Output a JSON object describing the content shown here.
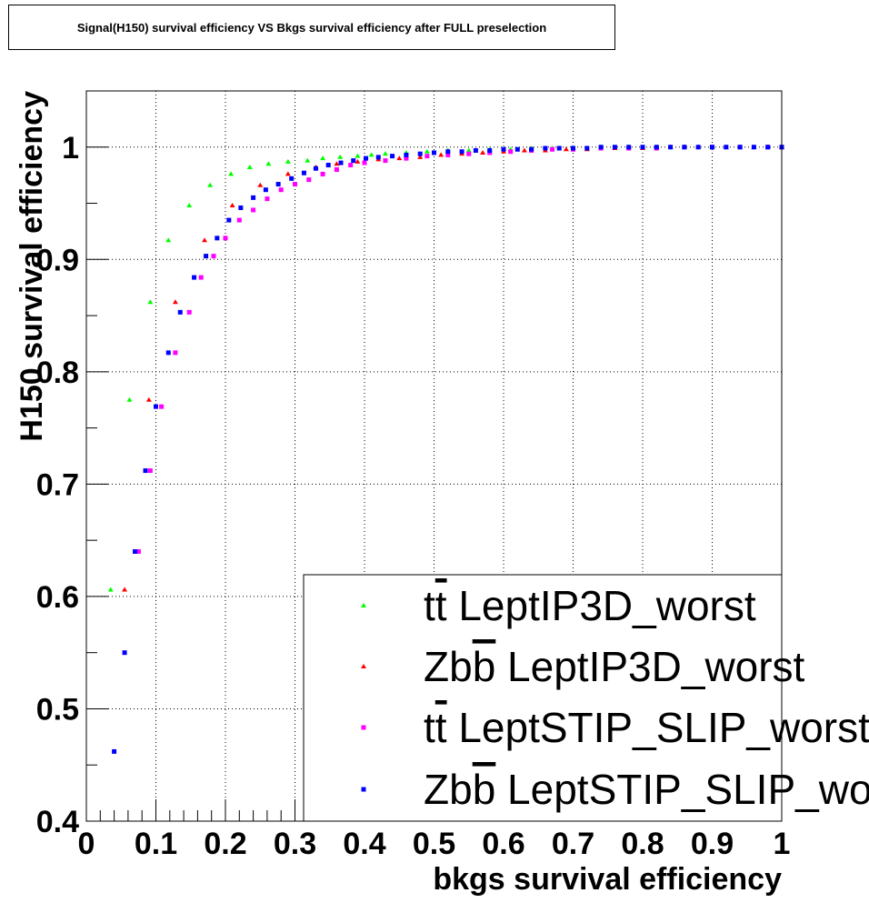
{
  "chart_data": {
    "type": "scatter",
    "title": "Signal(H150) survival efficiency VS Bkgs survival efficiency after FULL preselection",
    "xlabel": "bkgs survival efficiency",
    "ylabel": "H150 survival efficiency",
    "xlim": [
      0,
      1
    ],
    "ylim": [
      0.4,
      1.05
    ],
    "x_ticks": [
      0,
      0.1,
      0.2,
      0.3,
      0.4,
      0.5,
      0.6,
      0.7,
      0.8,
      0.9,
      1
    ],
    "x_tick_labels": [
      "0",
      "0.1",
      "0.2",
      "0.3",
      "0.4",
      "0.5",
      "0.6",
      "0.7",
      "0.8",
      "0.9",
      "1"
    ],
    "y_ticks": [
      0.4,
      0.5,
      0.6,
      0.7,
      0.8,
      0.9,
      1
    ],
    "y_tick_labels": [
      "0.4",
      "0.5",
      "0.6",
      "0.7",
      "0.8",
      "0.9",
      "1"
    ],
    "grid": true,
    "legend_position": "bottom-right",
    "series": [
      {
        "name": "tt̄ LeptIP3D_worst",
        "color": "#00ff00",
        "marker": "triangle",
        "x": [
          0.035,
          0.062,
          0.092,
          0.118,
          0.148,
          0.178,
          0.208,
          0.235,
          0.262,
          0.29,
          0.318,
          0.34,
          0.365,
          0.39,
          0.41,
          0.43,
          0.46,
          0.49,
          0.52,
          0.55,
          0.58,
          0.61,
          0.64,
          0.67,
          0.7,
          0.74,
          0.78,
          0.82,
          0.86,
          0.9,
          0.94,
          0.98,
          1.0
        ],
        "y": [
          0.606,
          0.775,
          0.862,
          0.917,
          0.948,
          0.966,
          0.976,
          0.982,
          0.985,
          0.987,
          0.988,
          0.99,
          0.991,
          0.992,
          0.993,
          0.994,
          0.995,
          0.996,
          0.997,
          0.997,
          0.998,
          0.998,
          0.999,
          0.999,
          0.999,
          1.0,
          1.0,
          1.0,
          1.0,
          1.0,
          1.0,
          1.0,
          1.0
        ]
      },
      {
        "name": "Zbb̄ LeptIP3D_worst",
        "color": "#ff0000",
        "marker": "triangle",
        "x": [
          0.055,
          0.09,
          0.128,
          0.17,
          0.21,
          0.25,
          0.29,
          0.33,
          0.36,
          0.39,
          0.42,
          0.45,
          0.48,
          0.51,
          0.54,
          0.57,
          0.6,
          0.63,
          0.66,
          0.69,
          0.72,
          0.76,
          0.8,
          0.84,
          0.88,
          0.92,
          0.96,
          1.0
        ],
        "y": [
          0.606,
          0.775,
          0.862,
          0.917,
          0.948,
          0.966,
          0.976,
          0.982,
          0.985,
          0.987,
          0.989,
          0.99,
          0.991,
          0.993,
          0.994,
          0.995,
          0.996,
          0.997,
          0.997,
          0.998,
          0.998,
          0.999,
          0.999,
          1.0,
          1.0,
          1.0,
          1.0,
          1.0
        ]
      },
      {
        "name": "tt̄ LeptSTIP_SLIP_worst",
        "color": "#ff00ff",
        "marker": "square",
        "x": [
          0.075,
          0.092,
          0.108,
          0.128,
          0.148,
          0.165,
          0.183,
          0.2,
          0.22,
          0.24,
          0.26,
          0.28,
          0.3,
          0.32,
          0.34,
          0.36,
          0.38,
          0.4,
          0.43,
          0.46,
          0.49,
          0.52,
          0.55,
          0.58,
          0.61,
          0.64,
          0.67,
          0.7,
          0.74,
          0.78,
          0.82,
          0.86,
          0.9,
          0.94,
          0.98,
          1.0
        ],
        "y": [
          0.64,
          0.712,
          0.769,
          0.817,
          0.853,
          0.884,
          0.903,
          0.919,
          0.935,
          0.944,
          0.954,
          0.962,
          0.967,
          0.971,
          0.976,
          0.98,
          0.984,
          0.986,
          0.988,
          0.99,
          0.992,
          0.993,
          0.994,
          0.995,
          0.996,
          0.997,
          0.998,
          0.998,
          0.999,
          0.999,
          0.999,
          1.0,
          1.0,
          1.0,
          1.0,
          1.0
        ]
      },
      {
        "name": "Zbb̄ LeptSTIP_SLIP_worst",
        "color": "#0000ff",
        "marker": "square",
        "x": [
          0.04,
          0.055,
          0.07,
          0.085,
          0.1,
          0.118,
          0.135,
          0.155,
          0.172,
          0.188,
          0.205,
          0.222,
          0.24,
          0.258,
          0.276,
          0.295,
          0.313,
          0.33,
          0.348,
          0.366,
          0.384,
          0.402,
          0.42,
          0.44,
          0.46,
          0.48,
          0.5,
          0.52,
          0.54,
          0.56,
          0.58,
          0.6,
          0.62,
          0.64,
          0.66,
          0.68,
          0.7,
          0.72,
          0.74,
          0.76,
          0.78,
          0.8,
          0.82,
          0.84,
          0.86,
          0.88,
          0.9,
          0.92,
          0.94,
          0.96,
          0.98,
          1.0
        ],
        "y": [
          0.462,
          0.55,
          0.64,
          0.712,
          0.769,
          0.817,
          0.853,
          0.884,
          0.903,
          0.919,
          0.935,
          0.946,
          0.955,
          0.962,
          0.967,
          0.972,
          0.977,
          0.981,
          0.984,
          0.986,
          0.988,
          0.99,
          0.991,
          0.992,
          0.993,
          0.994,
          0.995,
          0.996,
          0.996,
          0.997,
          0.997,
          0.998,
          0.998,
          0.998,
          0.999,
          0.999,
          0.999,
          0.999,
          1.0,
          1.0,
          1.0,
          1.0,
          1.0,
          1.0,
          1.0,
          1.0,
          1.0,
          1.0,
          1.0,
          1.0,
          1.0,
          1.0
        ]
      }
    ]
  },
  "legend": {
    "entries": [
      {
        "prefix": "t",
        "prefix_bar": "t",
        "rest": " LeptIP3D_worst"
      },
      {
        "prefix": "Zb",
        "prefix_bar": "b",
        "rest": " LeptIP3D_worst"
      },
      {
        "prefix": "t",
        "prefix_bar": "t",
        "rest": " LeptSTIP_SLIP_worst"
      },
      {
        "prefix": "Zb",
        "prefix_bar": "b",
        "rest": " LeptSTIP_SLIP_worst"
      }
    ]
  }
}
